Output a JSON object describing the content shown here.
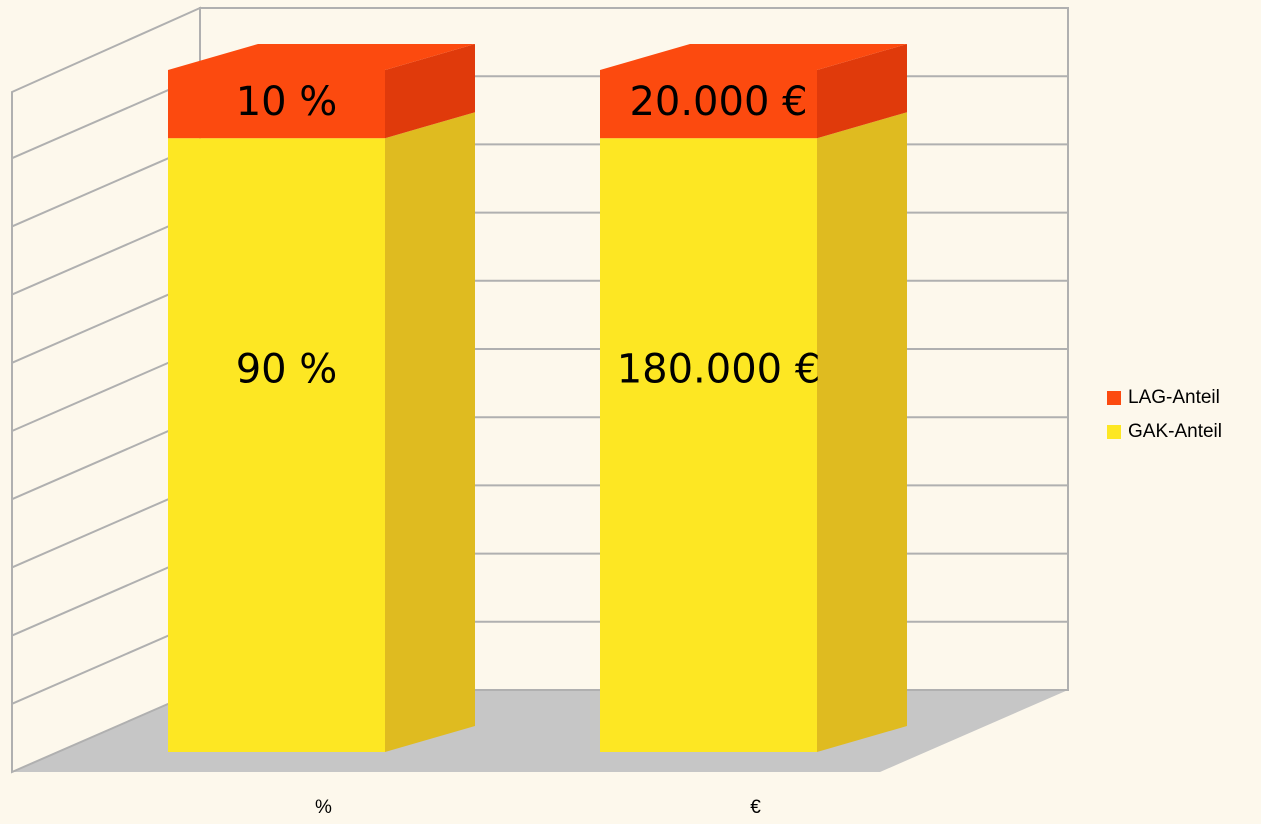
{
  "chart_data": {
    "type": "bar3d",
    "stacking": "percent",
    "categories": [
      "%",
      "€"
    ],
    "series": [
      {
        "name": "GAK-Anteil",
        "color": "#fde723",
        "side_color": "#dfbb20",
        "values": [
          90,
          180000
        ],
        "value_labels": [
          "90 %",
          "180.000 €"
        ]
      },
      {
        "name": "LAG-Anteil",
        "color": "#fc4a0f",
        "side_color": "#e03a0b",
        "values": [
          10,
          20000
        ],
        "value_labels": [
          "10 %",
          "20.000 €"
        ]
      }
    ],
    "grid": true,
    "grid_divisions": 10,
    "legend": "right"
  }
}
